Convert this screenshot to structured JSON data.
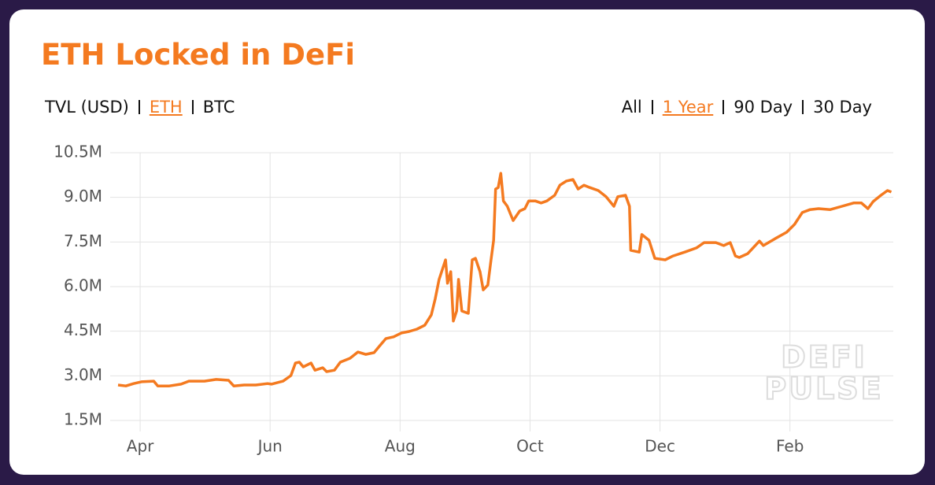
{
  "chart_data": {
    "type": "line",
    "title": "ETH Locked in DeFi",
    "unit_options": [
      "TVL (USD)",
      "ETH",
      "BTC"
    ],
    "range_options": [
      "All",
      "1 Year",
      "90 Day",
      "30 Day"
    ],
    "watermark": [
      "DEFI",
      "PULSE"
    ],
    "grid": true,
    "xlim": [
      -0.34,
      11.59
    ],
    "xticks": [
      {
        "value": 0,
        "label": "Apr"
      },
      {
        "value": 2,
        "label": "Jun"
      },
      {
        "value": 4,
        "label": "Aug"
      },
      {
        "value": 6,
        "label": "Oct"
      },
      {
        "value": 8,
        "label": "Dec"
      },
      {
        "value": 10,
        "label": "Feb"
      }
    ],
    "ylim": [
      1.5,
      10.5
    ],
    "yticks": [
      {
        "value": 1.5,
        "label": "1.5M"
      },
      {
        "value": 3,
        "label": "3.0M"
      },
      {
        "value": 4.5,
        "label": "4.5M"
      },
      {
        "value": 6,
        "label": "6.0M"
      },
      {
        "value": 7.5,
        "label": "7.5M"
      },
      {
        "value": 9,
        "label": "9.0M"
      },
      {
        "value": 10.5,
        "label": "10.5M"
      }
    ],
    "x": [
      -0.34,
      -0.22,
      -0.1,
      0.02,
      0.21,
      0.27,
      0.45,
      0.63,
      0.75,
      0.99,
      1.17,
      1.36,
      1.44,
      1.6,
      1.78,
      1.96,
      2.02,
      2.2,
      2.32,
      2.39,
      2.45,
      2.51,
      2.63,
      2.69,
      2.81,
      2.87,
      2.99,
      3.08,
      3.23,
      3.35,
      3.47,
      3.6,
      3.68,
      3.78,
      3.9,
      4.02,
      4.14,
      4.26,
      4.38,
      4.48,
      4.54,
      4.6,
      4.7,
      4.73,
      4.78,
      4.82,
      4.87,
      4.9,
      4.95,
      5.05,
      5.11,
      5.16,
      5.23,
      5.28,
      5.35,
      5.4,
      5.44,
      5.47,
      5.51,
      5.55,
      5.59,
      5.65,
      5.74,
      5.84,
      5.92,
      5.98,
      6.08,
      6.17,
      6.26,
      6.38,
      6.46,
      6.56,
      6.66,
      6.74,
      6.83,
      6.92,
      7.05,
      7.17,
      7.29,
      7.35,
      7.47,
      7.53,
      7.55,
      7.68,
      7.72,
      7.83,
      7.92,
      8.08,
      8.2,
      8.38,
      8.56,
      8.68,
      8.86,
      8.98,
      9.08,
      9.16,
      9.22,
      9.35,
      9.53,
      9.59,
      9.77,
      9.95,
      10.07,
      10.19,
      10.31,
      10.44,
      10.62,
      10.8,
      10.98,
      11.1,
      11.2,
      11.28,
      11.4,
      11.5,
      11.56
    ],
    "series": [
      {
        "color": "#f47a20",
        "values": [
          2.69,
          2.66,
          2.74,
          2.8,
          2.82,
          2.66,
          2.66,
          2.72,
          2.82,
          2.82,
          2.88,
          2.85,
          2.66,
          2.69,
          2.69,
          2.74,
          2.72,
          2.82,
          3.01,
          3.43,
          3.46,
          3.3,
          3.43,
          3.19,
          3.27,
          3.14,
          3.19,
          3.46,
          3.59,
          3.8,
          3.72,
          3.78,
          3.99,
          4.25,
          4.31,
          4.44,
          4.49,
          4.57,
          4.7,
          5.05,
          5.58,
          6.24,
          6.9,
          6.11,
          6.5,
          4.84,
          5.18,
          6.24,
          5.18,
          5.1,
          6.9,
          6.95,
          6.5,
          5.89,
          6.05,
          6.9,
          7.56,
          9.28,
          9.33,
          9.81,
          8.88,
          8.7,
          8.22,
          8.54,
          8.62,
          8.88,
          8.88,
          8.81,
          8.88,
          9.07,
          9.41,
          9.55,
          9.6,
          9.28,
          9.41,
          9.33,
          9.23,
          9.02,
          8.7,
          9.02,
          9.07,
          8.7,
          7.22,
          7.16,
          7.75,
          7.56,
          6.95,
          6.9,
          7.03,
          7.16,
          7.3,
          7.48,
          7.48,
          7.38,
          7.48,
          7.03,
          6.98,
          7.11,
          7.53,
          7.38,
          7.61,
          7.83,
          8.09,
          8.49,
          8.59,
          8.62,
          8.59,
          8.7,
          8.81,
          8.81,
          8.62,
          8.86,
          9.07,
          9.23,
          9.18
        ]
      }
    ]
  }
}
